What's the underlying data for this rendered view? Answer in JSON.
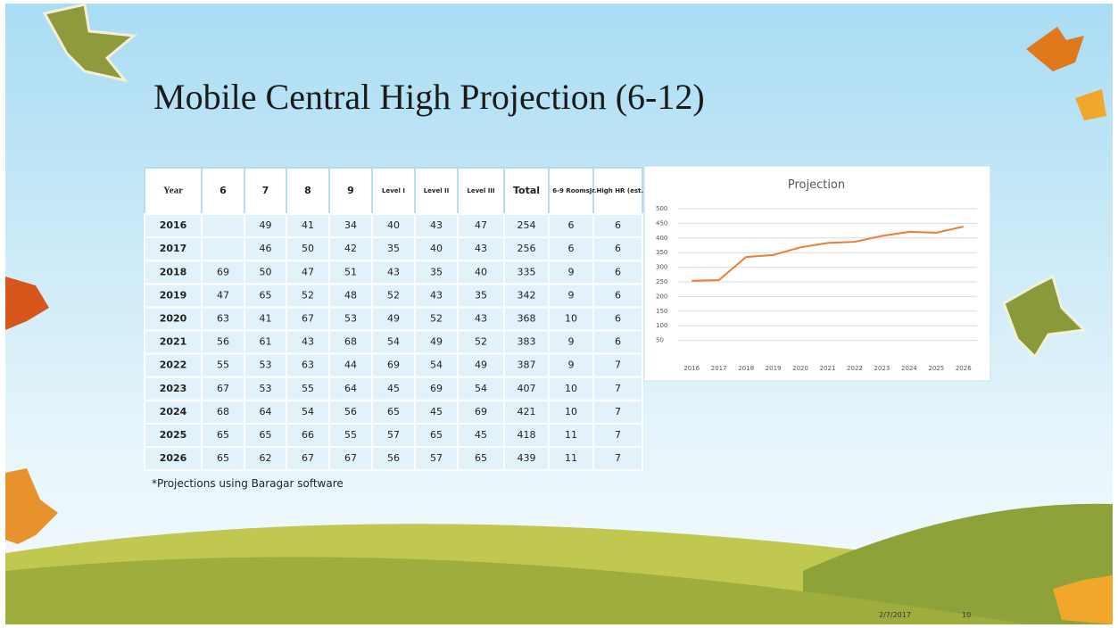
{
  "title": "Mobile Central High Projection (6-12)",
  "table": {
    "header": [
      "Year",
      "6",
      "7",
      "8",
      "9",
      "Level I",
      "Level II",
      "Level III",
      "Total",
      "6-9 Rooms",
      "Jr.High HR (est.)"
    ],
    "rows": [
      [
        "2016",
        null,
        "49",
        "41",
        "34",
        "40",
        "43",
        "47",
        "254",
        "6",
        "6"
      ],
      [
        "2017",
        null,
        "46",
        "50",
        "42",
        "35",
        "40",
        "43",
        "256",
        "6",
        "6"
      ],
      [
        "2018",
        "69",
        "50",
        "47",
        "51",
        "43",
        "35",
        "40",
        "335",
        "9",
        "6"
      ],
      [
        "2019",
        "47",
        "65",
        "52",
        "48",
        "52",
        "43",
        "35",
        "342",
        "9",
        "6"
      ],
      [
        "2020",
        "63",
        "41",
        "67",
        "53",
        "49",
        "52",
        "43",
        "368",
        "10",
        "6"
      ],
      [
        "2021",
        "56",
        "61",
        "43",
        "68",
        "54",
        "49",
        "52",
        "383",
        "9",
        "6"
      ],
      [
        "2022",
        "55",
        "53",
        "63",
        "44",
        "69",
        "54",
        "49",
        "387",
        "9",
        "7"
      ],
      [
        "2023",
        "67",
        "53",
        "55",
        "64",
        "45",
        "69",
        "54",
        "407",
        "10",
        "7"
      ],
      [
        "2024",
        "68",
        "64",
        "54",
        "56",
        "65",
        "45",
        "69",
        "421",
        "10",
        "7"
      ],
      [
        "2025",
        "65",
        "65",
        "66",
        "55",
        "57",
        "65",
        "45",
        "418",
        "11",
        "7"
      ],
      [
        "2026",
        "65",
        "62",
        "67",
        "67",
        "56",
        "57",
        "65",
        "439",
        "11",
        "7"
      ]
    ]
  },
  "footnote": "*Projections using Baragar software",
  "chart_data": {
    "type": "line",
    "title": "Projection",
    "categories": [
      "2016",
      "2017",
      "2018",
      "2019",
      "2020",
      "2021",
      "2022",
      "2023",
      "2024",
      "2025",
      "2026"
    ],
    "values": [
      254,
      256,
      335,
      342,
      368,
      383,
      387,
      407,
      421,
      418,
      439
    ],
    "color": "#ed7d31",
    "ylim": [
      0,
      500
    ],
    "yticks": [
      50,
      100,
      150,
      200,
      250,
      300,
      350,
      400,
      450,
      500
    ],
    "grid": true
  },
  "footer": {
    "date": "2/7/2017",
    "page": "10"
  }
}
